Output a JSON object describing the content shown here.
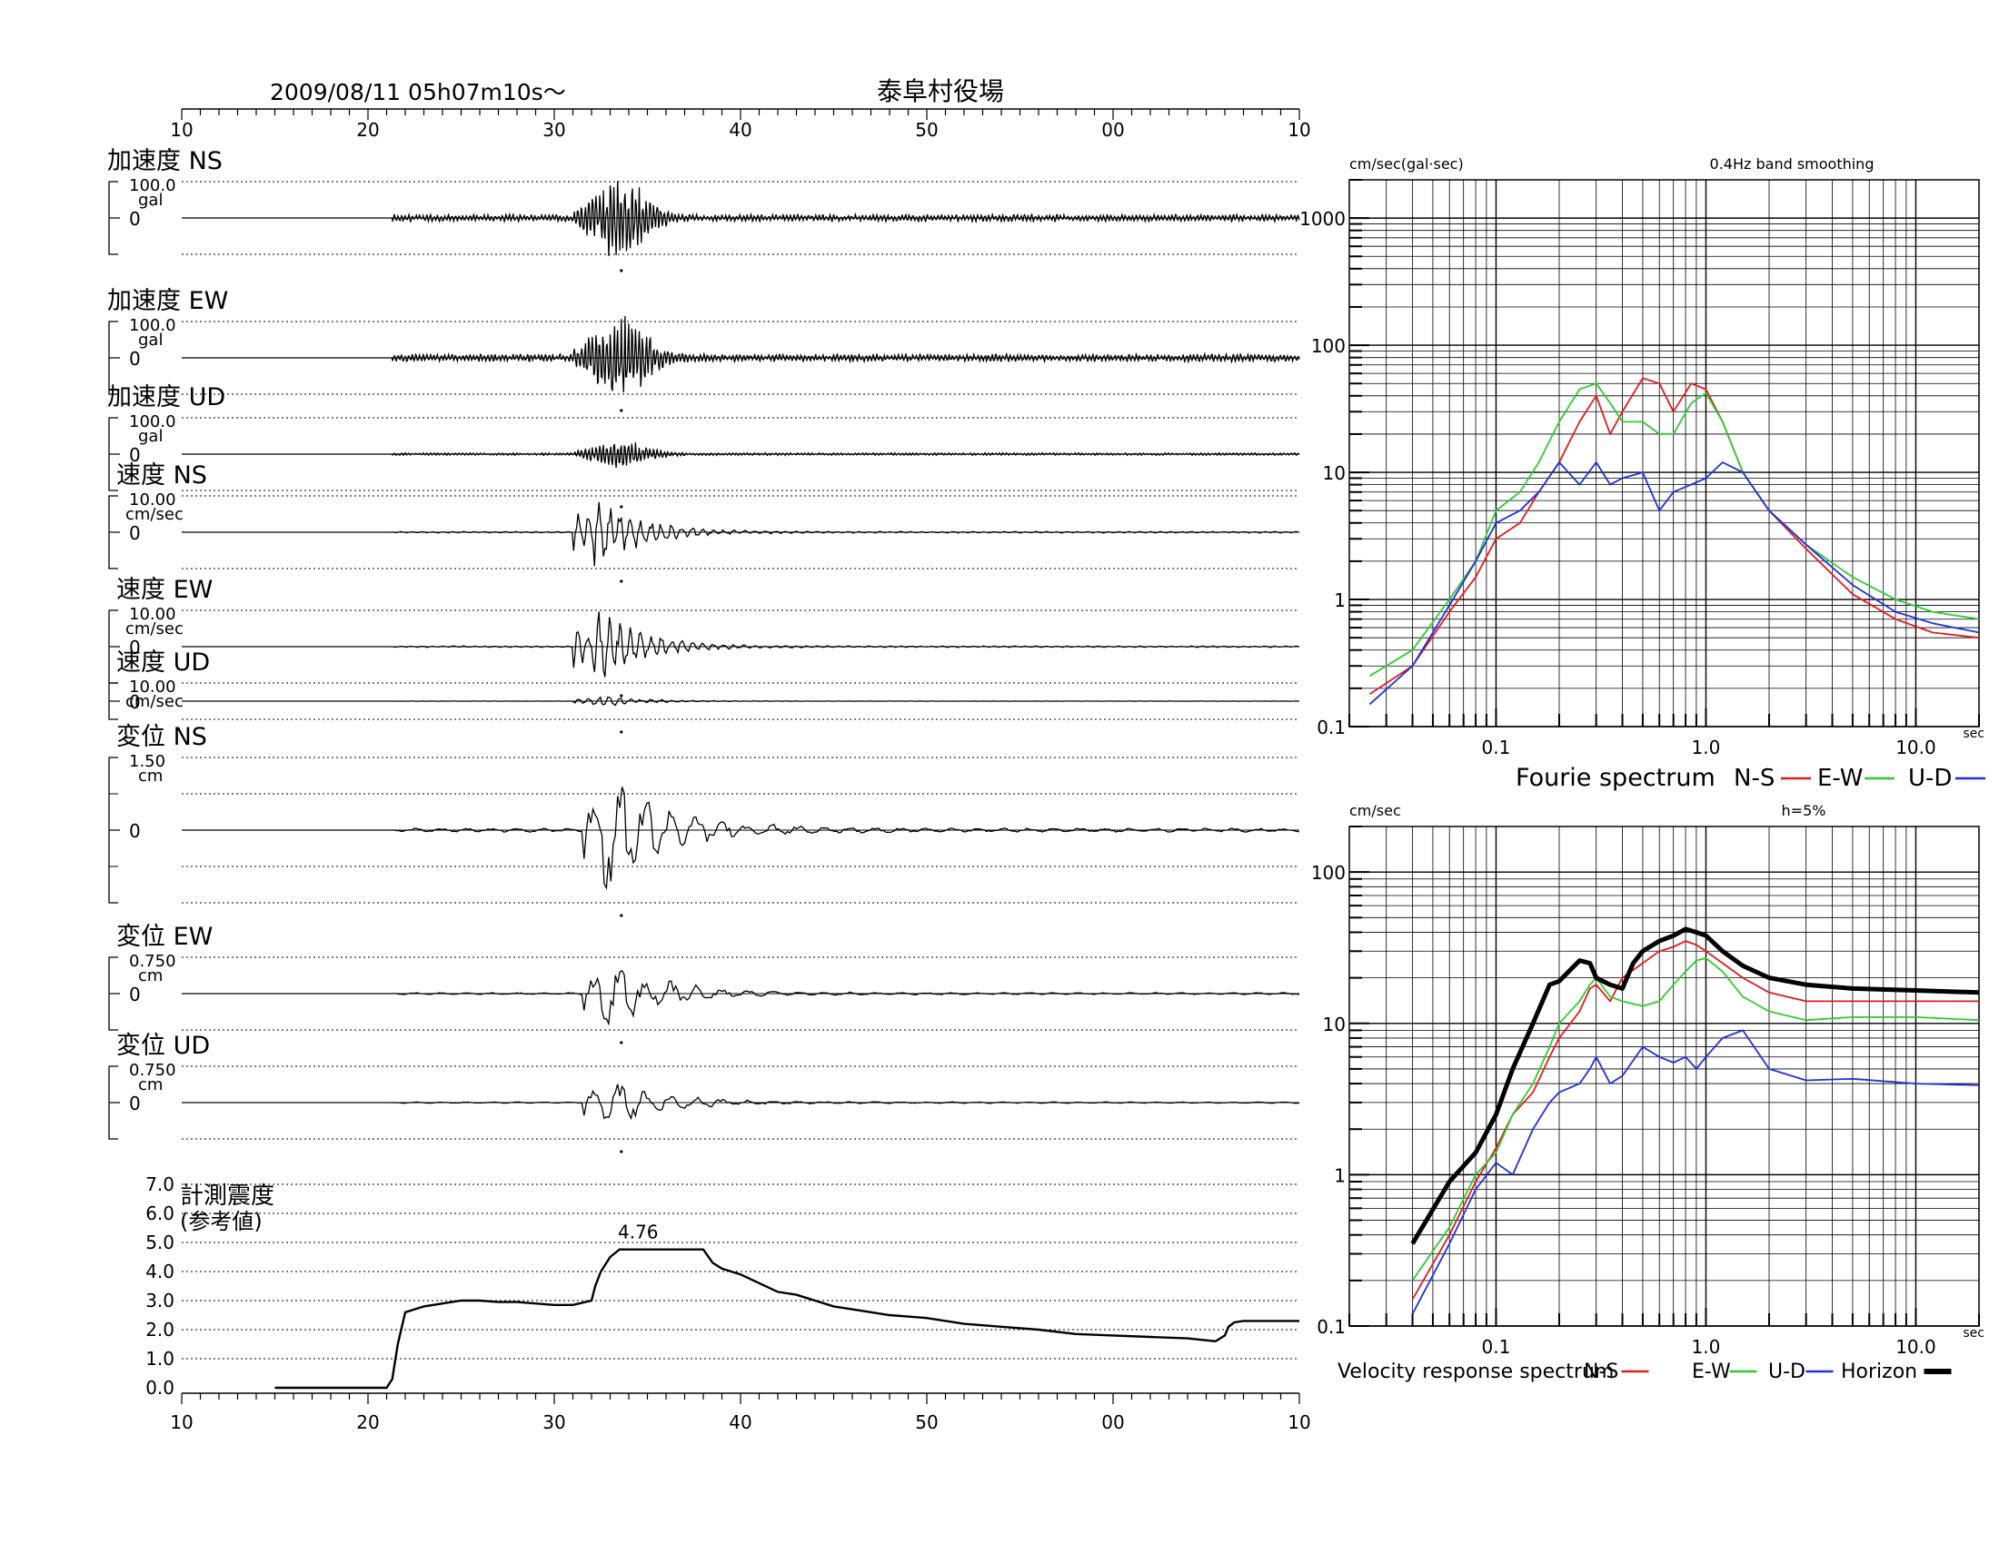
{
  "header": {
    "datetime": "2009/08/11  05h07m10s〜",
    "station": "泰阜村役場"
  },
  "colors": {
    "ns": "#e41a1c",
    "ew": "#2ecc2e",
    "ud": "#1f2fe0",
    "horizon": "#000000",
    "trace": "#000000"
  },
  "chart_data": [
    {
      "type": "line",
      "name": "waveforms",
      "xlabel": "",
      "time_ticks": [
        "10",
        "20",
        "30",
        "40",
        "50",
        "00",
        "10"
      ],
      "xlim": [
        10,
        70
      ],
      "panels": [
        {
          "label": "加速度 NS",
          "scale": "100.0",
          "unit": "gal",
          "zero": "0",
          "amp_ratio": 1.0
        },
        {
          "label": "加速度 EW",
          "scale": "100.0",
          "unit": "gal",
          "zero": "0",
          "amp_ratio": 1.1
        },
        {
          "label": "加速度 UD",
          "scale": "100.0",
          "unit": "gal",
          "zero": "0",
          "amp_ratio": 0.35
        },
        {
          "label": "速度 NS",
          "scale": "10.00",
          "unit": "cm/sec",
          "zero": "0",
          "amp_ratio": 0.8
        },
        {
          "label": "速度 EW",
          "scale": "10.00",
          "unit": "cm/sec",
          "zero": "0",
          "amp_ratio": 0.8
        },
        {
          "label": "速度 UD",
          "scale": "10.00",
          "unit": "cm/sec",
          "zero": "0",
          "amp_ratio": 0.25
        },
        {
          "label": "変位 NS",
          "scale": "1.50",
          "unit": "cm",
          "zero": "0",
          "amp_ratio": 0.75
        },
        {
          "label": "変位 EW",
          "scale": "0.750",
          "unit": "cm",
          "zero": "0",
          "amp_ratio": 0.75
        },
        {
          "label": "変位 UD",
          "scale": "0.750",
          "unit": "cm",
          "zero": "0",
          "amp_ratio": 0.5
        }
      ]
    },
    {
      "type": "line",
      "name": "intensity",
      "title_line1": "計測震度",
      "title_line2": "(参考値)",
      "peak_label": "4.76",
      "y_ticks": [
        "7.0",
        "6.0",
        "5.0",
        "4.0",
        "3.0",
        "2.0",
        "1.0",
        "0.0"
      ],
      "ylim": [
        0,
        7
      ],
      "x": [
        15,
        21,
        21.3,
        21.6,
        22,
        23,
        24,
        25,
        26,
        27,
        28,
        29,
        30,
        31,
        32,
        32.2,
        32.5,
        33,
        33.5,
        34,
        35,
        36,
        37,
        38,
        38.5,
        39,
        40,
        41,
        42,
        43,
        44,
        45,
        46,
        47,
        48,
        49,
        50,
        52,
        54,
        56,
        58,
        60,
        62,
        64,
        65.5,
        66,
        66.2,
        66.5,
        67,
        68,
        70
      ],
      "y": [
        0,
        0,
        0.3,
        1.5,
        2.6,
        2.8,
        2.9,
        3.0,
        3.0,
        2.95,
        2.95,
        2.9,
        2.85,
        2.85,
        3.0,
        3.5,
        4.0,
        4.5,
        4.76,
        4.76,
        4.76,
        4.76,
        4.76,
        4.76,
        4.3,
        4.1,
        3.9,
        3.6,
        3.3,
        3.2,
        3.0,
        2.8,
        2.7,
        2.6,
        2.5,
        2.45,
        2.4,
        2.2,
        2.1,
        2.0,
        1.85,
        1.8,
        1.75,
        1.7,
        1.6,
        1.8,
        2.1,
        2.25,
        2.3,
        2.3,
        2.3
      ]
    },
    {
      "type": "line",
      "name": "fourier",
      "unit_label": "cm/sec(gal·sec)",
      "note": "0.4Hz band smoothing",
      "title": "Fourie spectrum",
      "x_unit": "sec",
      "log_x": true,
      "log_y": true,
      "xlim": [
        0.02,
        20
      ],
      "ylim": [
        0.1,
        2000
      ],
      "x_ticks": [
        "0.1",
        "1.0",
        "10.0"
      ],
      "y_ticks": [
        "1000",
        "100",
        "10",
        "1",
        "0.1"
      ],
      "series": [
        {
          "name": "N-S",
          "color": "#e41a1c",
          "x": [
            0.025,
            0.04,
            0.06,
            0.08,
            0.1,
            0.13,
            0.16,
            0.2,
            0.25,
            0.3,
            0.35,
            0.4,
            0.5,
            0.6,
            0.7,
            0.85,
            1.0,
            1.2,
            1.5,
            2,
            3,
            5,
            8,
            12,
            20
          ],
          "y": [
            0.18,
            0.3,
            0.8,
            1.5,
            3,
            4,
            7,
            12,
            25,
            40,
            20,
            30,
            55,
            50,
            30,
            50,
            45,
            25,
            10,
            5,
            2.5,
            1.1,
            0.7,
            0.55,
            0.5
          ]
        },
        {
          "name": "E-W",
          "color": "#2ecc2e",
          "x": [
            0.025,
            0.04,
            0.06,
            0.08,
            0.1,
            0.13,
            0.16,
            0.2,
            0.25,
            0.3,
            0.35,
            0.4,
            0.5,
            0.6,
            0.7,
            0.85,
            1.0,
            1.2,
            1.5,
            2,
            3,
            5,
            8,
            12,
            20
          ],
          "y": [
            0.25,
            0.4,
            1,
            2,
            5,
            7,
            12,
            25,
            45,
            50,
            35,
            25,
            25,
            20,
            20,
            35,
            42,
            25,
            10,
            5,
            2.7,
            1.5,
            1.0,
            0.8,
            0.7
          ]
        },
        {
          "name": "U-D",
          "color": "#1f2fe0",
          "x": [
            0.025,
            0.04,
            0.06,
            0.08,
            0.1,
            0.13,
            0.16,
            0.2,
            0.25,
            0.3,
            0.35,
            0.4,
            0.5,
            0.6,
            0.7,
            0.85,
            1.0,
            1.2,
            1.5,
            2,
            3,
            5,
            8,
            12,
            20
          ],
          "y": [
            0.15,
            0.3,
            0.9,
            2,
            4,
            5,
            7,
            12,
            8,
            12,
            8,
            9,
            10,
            5,
            7,
            8,
            9,
            12,
            10,
            5,
            2.7,
            1.3,
            0.8,
            0.65,
            0.55
          ]
        }
      ]
    },
    {
      "type": "line",
      "name": "velocity_response",
      "unit_label": "cm/sec",
      "note": "h=5%",
      "title": "Velocity response spectrum",
      "x_unit": "sec",
      "log_x": true,
      "log_y": true,
      "xlim": [
        0.02,
        20
      ],
      "ylim": [
        0.1,
        200
      ],
      "x_ticks": [
        "0.1",
        "1.0",
        "10.0"
      ],
      "y_ticks": [
        "100",
        "10",
        "1",
        "0.1"
      ],
      "series": [
        {
          "name": "N-S",
          "color": "#e41a1c",
          "x": [
            0.04,
            0.06,
            0.08,
            0.1,
            0.12,
            0.15,
            0.18,
            0.2,
            0.25,
            0.28,
            0.3,
            0.35,
            0.4,
            0.5,
            0.6,
            0.7,
            0.8,
            0.9,
            1.0,
            1.2,
            1.5,
            2,
            3,
            5,
            10,
            20
          ],
          "y": [
            0.15,
            0.4,
            0.9,
            1.5,
            2.5,
            3.5,
            6,
            8,
            12,
            17,
            18,
            14,
            20,
            25,
            30,
            32,
            35,
            33,
            30,
            25,
            20,
            16,
            14,
            14,
            14,
            14
          ]
        },
        {
          "name": "E-W",
          "color": "#2ecc2e",
          "x": [
            0.04,
            0.06,
            0.08,
            0.1,
            0.12,
            0.15,
            0.18,
            0.2,
            0.25,
            0.28,
            0.3,
            0.35,
            0.4,
            0.5,
            0.6,
            0.7,
            0.8,
            0.9,
            1.0,
            1.2,
            1.5,
            2,
            3,
            5,
            10,
            20
          ],
          "y": [
            0.2,
            0.45,
            1.0,
            1.4,
            2.5,
            4,
            7,
            10,
            14,
            18,
            20,
            15,
            14,
            13,
            14,
            18,
            22,
            26,
            27,
            22,
            15,
            12,
            10.5,
            11,
            11,
            10.5
          ]
        },
        {
          "name": "U-D",
          "color": "#1f2fe0",
          "x": [
            0.04,
            0.06,
            0.08,
            0.1,
            0.12,
            0.15,
            0.18,
            0.2,
            0.25,
            0.28,
            0.3,
            0.35,
            0.4,
            0.5,
            0.6,
            0.7,
            0.8,
            0.9,
            1.0,
            1.2,
            1.5,
            2,
            3,
            5,
            10,
            20
          ],
          "y": [
            0.12,
            0.35,
            0.8,
            1.2,
            1.0,
            2.0,
            3.0,
            3.5,
            4,
            5,
            6,
            4,
            4.5,
            7,
            6,
            5.5,
            6,
            5,
            6,
            8,
            9,
            5,
            4.2,
            4.3,
            4.0,
            3.9
          ]
        },
        {
          "name": "Horizon",
          "color": "#000000",
          "x": [
            0.04,
            0.06,
            0.08,
            0.1,
            0.12,
            0.15,
            0.18,
            0.2,
            0.25,
            0.28,
            0.3,
            0.35,
            0.4,
            0.45,
            0.5,
            0.6,
            0.7,
            0.8,
            0.9,
            1.0,
            1.2,
            1.5,
            2,
            3,
            5,
            10,
            20
          ],
          "y": [
            0.35,
            0.9,
            1.4,
            2.5,
            5,
            10,
            18,
            19,
            26,
            25,
            20,
            18,
            17,
            25,
            30,
            35,
            38,
            42,
            40,
            38,
            30,
            24,
            20,
            18,
            17,
            16.5,
            16
          ]
        }
      ]
    }
  ]
}
